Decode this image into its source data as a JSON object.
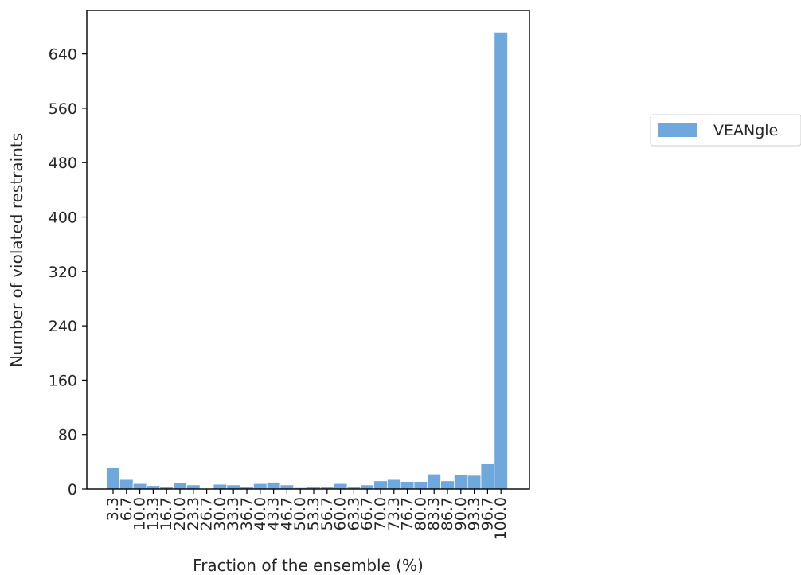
{
  "chart_data": {
    "type": "bar",
    "xlabel": "Fraction of the ensemble (%)",
    "ylabel": "Number of violated restraints",
    "ylim": [
      0,
      704
    ],
    "yticks": [
      0,
      80,
      160,
      240,
      320,
      400,
      480,
      560,
      640
    ],
    "grid": false,
    "legend_position": "outside-right",
    "categories": [
      "3.3",
      "6.7",
      "10.0",
      "13.3",
      "16.7",
      "20.0",
      "23.3",
      "26.7",
      "30.0",
      "33.3",
      "36.7",
      "40.0",
      "43.3",
      "46.7",
      "50.0",
      "53.3",
      "56.7",
      "60.0",
      "63.3",
      "66.7",
      "70.0",
      "73.3",
      "76.7",
      "80.0",
      "83.3",
      "86.7",
      "90.0",
      "93.3",
      "96.7",
      "100.0"
    ],
    "series": [
      {
        "name": "VEANgle",
        "color": "#6fa8dc",
        "values": [
          31,
          14,
          8,
          5,
          3,
          9,
          6,
          1,
          7,
          6,
          3,
          8,
          10,
          6,
          2,
          4,
          3,
          8,
          3,
          6,
          12,
          14,
          11,
          11,
          22,
          12,
          21,
          20,
          38,
          672
        ]
      }
    ]
  }
}
